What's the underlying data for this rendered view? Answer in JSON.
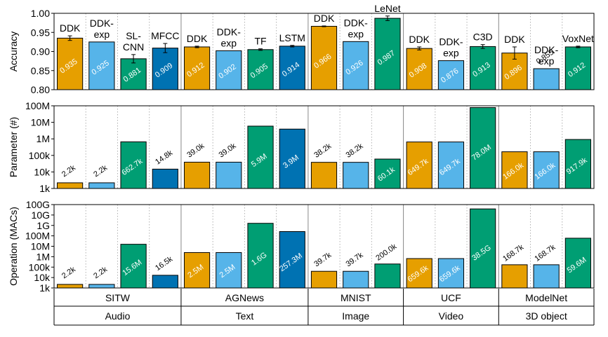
{
  "chart_data": [
    {
      "type": "bar",
      "ylabel": "Accuracy",
      "ylim": [
        0.8,
        1.0
      ],
      "yticks": [
        "0.80",
        "0.85",
        "0.90",
        "0.95",
        "1.00"
      ],
      "grid": "vertical dotted separators between bars",
      "bars": [
        {
          "label": "DDK",
          "value": 0.935,
          "value_label": "0.935",
          "err": 0.006
        },
        {
          "label": "DDK-exp",
          "value": 0.925,
          "value_label": "0.925",
          "err": 0
        },
        {
          "label": "SL-CNN",
          "value": 0.881,
          "value_label": "0.881",
          "err": 0.011
        },
        {
          "label": "MFCC",
          "value": 0.909,
          "value_label": "0.909",
          "err": 0.012
        },
        {
          "label": "DDK",
          "value": 0.912,
          "value_label": "0.912",
          "err": 0.002
        },
        {
          "label": "DDK-exp",
          "value": 0.902,
          "value_label": "0.902",
          "err": 0
        },
        {
          "label": "TF",
          "value": 0.905,
          "value_label": "0.905",
          "err": 0.002
        },
        {
          "label": "LSTM",
          "value": 0.914,
          "value_label": "0.914",
          "err": 0.002
        },
        {
          "label": "DDK",
          "value": 0.966,
          "value_label": "0.966",
          "err": 0.001
        },
        {
          "label": "DDK-exp",
          "value": 0.926,
          "value_label": "0.926",
          "err": 0
        },
        {
          "label": "LeNet",
          "value": 0.987,
          "value_label": "0.987",
          "err": 0.006
        },
        {
          "label": "DDK",
          "value": 0.908,
          "value_label": "0.908",
          "err": 0.004
        },
        {
          "label": "DDK-exp",
          "value": 0.876,
          "value_label": "0.876",
          "err": 0
        },
        {
          "label": "C3D",
          "value": 0.913,
          "value_label": "0.913",
          "err": 0.005
        },
        {
          "label": "DDK",
          "value": 0.896,
          "value_label": "0.896",
          "err": 0.016
        },
        {
          "label": "DDK-exp",
          "value": 0.855,
          "value_label": "0.855",
          "err": 0
        },
        {
          "label": "VoxNet",
          "value": 0.912,
          "value_label": "0.912",
          "err": 0.002
        }
      ]
    },
    {
      "type": "bar",
      "ylabel": "Parameter (#)",
      "scale": "log",
      "ylim": [
        1000,
        100000000
      ],
      "yticks": [
        "1k",
        "10k",
        "100k",
        "1M",
        "10M",
        "100M"
      ],
      "bars": [
        {
          "value": 2200,
          "value_label": "2.2k"
        },
        {
          "value": 2200,
          "value_label": "2.2k"
        },
        {
          "value": 662700,
          "value_label": "662.7k"
        },
        {
          "value": 14800,
          "value_label": "14.8k"
        },
        {
          "value": 39000,
          "value_label": "39.0k"
        },
        {
          "value": 39000,
          "value_label": "39.0k"
        },
        {
          "value": 5900000,
          "value_label": "5.9M"
        },
        {
          "value": 3900000,
          "value_label": "3.9M"
        },
        {
          "value": 38200,
          "value_label": "38.2k"
        },
        {
          "value": 38200,
          "value_label": "38.2k"
        },
        {
          "value": 60100,
          "value_label": "60.1k"
        },
        {
          "value": 649700,
          "value_label": "649.7k"
        },
        {
          "value": 649700,
          "value_label": "649.7k"
        },
        {
          "value": 78000000,
          "value_label": "78.0M"
        },
        {
          "value": 166000,
          "value_label": "166.0k"
        },
        {
          "value": 166000,
          "value_label": "166.0k"
        },
        {
          "value": 917900,
          "value_label": "917.9k"
        }
      ]
    },
    {
      "type": "bar",
      "ylabel": "Operation (MACs)",
      "scale": "log",
      "ylim": [
        1000,
        100000000000
      ],
      "yticks": [
        "1k",
        "10k",
        "100k",
        "1M",
        "10M",
        "100M",
        "1G",
        "10G",
        "100G"
      ],
      "bars": [
        {
          "value": 2200,
          "value_label": "2.2k"
        },
        {
          "value": 2200,
          "value_label": "2.2k"
        },
        {
          "value": 15600000,
          "value_label": "15.6M"
        },
        {
          "value": 16500,
          "value_label": "16.5k"
        },
        {
          "value": 2500000,
          "value_label": "2.5M"
        },
        {
          "value": 2500000,
          "value_label": "2.5M"
        },
        {
          "value": 1600000000,
          "value_label": "1.6G"
        },
        {
          "value": 257300000,
          "value_label": "257.3M"
        },
        {
          "value": 39700,
          "value_label": "39.7k"
        },
        {
          "value": 39700,
          "value_label": "39.7k"
        },
        {
          "value": 200000,
          "value_label": "200.0k"
        },
        {
          "value": 659600,
          "value_label": "659.6k"
        },
        {
          "value": 659600,
          "value_label": "659.6k"
        },
        {
          "value": 38500000000,
          "value_label": "38.5G"
        },
        {
          "value": 168700,
          "value_label": "168.7k"
        },
        {
          "value": 168700,
          "value_label": "168.7k"
        },
        {
          "value": 59600000,
          "value_label": "59.6M"
        }
      ]
    }
  ],
  "bar_colors": [
    "#E69F00",
    "#56B4E9",
    "#009E73",
    "#0072B2",
    "#E69F00",
    "#56B4E9",
    "#009E73",
    "#0072B2",
    "#E69F00",
    "#56B4E9",
    "#009E73",
    "#E69F00",
    "#56B4E9",
    "#009E73",
    "#E69F00",
    "#56B4E9",
    "#009E73"
  ],
  "groups": [
    {
      "dataset": "SITW",
      "modality": "Audio",
      "count": 4
    },
    {
      "dataset": "AGNews",
      "modality": "Text",
      "count": 4
    },
    {
      "dataset": "MNIST",
      "modality": "Image",
      "count": 3
    },
    {
      "dataset": "UCF",
      "modality": "Video",
      "count": 3
    },
    {
      "dataset": "ModelNet",
      "modality": "3D object",
      "count": 3
    }
  ]
}
